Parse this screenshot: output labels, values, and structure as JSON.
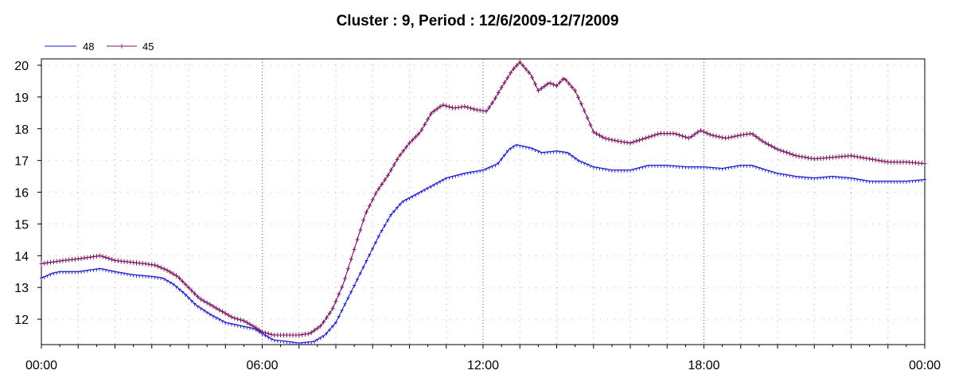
{
  "chart_data": {
    "type": "line",
    "title": "Cluster : 9, Period : 12/6/2009-12/7/2009",
    "xlabel": "",
    "ylabel": "",
    "x_unit": "hours",
    "xlim": [
      0,
      24
    ],
    "ylim": [
      11.2,
      20.2
    ],
    "x_ticks": [
      {
        "value": 0,
        "label": "00:00"
      },
      {
        "value": 6,
        "label": "06:00"
      },
      {
        "value": 12,
        "label": "12:00"
      },
      {
        "value": 18,
        "label": "18:00"
      },
      {
        "value": 24,
        "label": "00:00"
      }
    ],
    "y_ticks": [
      12,
      13,
      14,
      15,
      16,
      17,
      18,
      19,
      20
    ],
    "grid": true,
    "legend_position": "top-left",
    "series": [
      {
        "name": "48",
        "color": "#1c1cc8",
        "marker": "tick",
        "points": [
          [
            0.0,
            13.3
          ],
          [
            0.3,
            13.45
          ],
          [
            0.5,
            13.5
          ],
          [
            1.0,
            13.5
          ],
          [
            1.3,
            13.55
          ],
          [
            1.6,
            13.6
          ],
          [
            2.0,
            13.5
          ],
          [
            2.5,
            13.4
          ],
          [
            3.0,
            13.35
          ],
          [
            3.3,
            13.3
          ],
          [
            3.6,
            13.1
          ],
          [
            3.9,
            12.8
          ],
          [
            4.2,
            12.45
          ],
          [
            4.6,
            12.15
          ],
          [
            5.0,
            11.9
          ],
          [
            5.4,
            11.8
          ],
          [
            5.8,
            11.7
          ],
          [
            6.0,
            11.55
          ],
          [
            6.3,
            11.35
          ],
          [
            6.7,
            11.3
          ],
          [
            7.0,
            11.25
          ],
          [
            7.4,
            11.3
          ],
          [
            7.7,
            11.5
          ],
          [
            8.0,
            11.9
          ],
          [
            8.3,
            12.6
          ],
          [
            8.6,
            13.3
          ],
          [
            8.9,
            14.0
          ],
          [
            9.2,
            14.7
          ],
          [
            9.5,
            15.3
          ],
          [
            9.8,
            15.7
          ],
          [
            10.2,
            15.95
          ],
          [
            10.6,
            16.2
          ],
          [
            11.0,
            16.45
          ],
          [
            11.5,
            16.6
          ],
          [
            12.0,
            16.7
          ],
          [
            12.4,
            16.9
          ],
          [
            12.7,
            17.35
          ],
          [
            12.9,
            17.5
          ],
          [
            13.3,
            17.4
          ],
          [
            13.6,
            17.25
          ],
          [
            14.0,
            17.3
          ],
          [
            14.3,
            17.25
          ],
          [
            14.6,
            17.0
          ],
          [
            15.0,
            16.8
          ],
          [
            15.5,
            16.7
          ],
          [
            16.0,
            16.7
          ],
          [
            16.5,
            16.85
          ],
          [
            17.0,
            16.85
          ],
          [
            17.5,
            16.8
          ],
          [
            18.0,
            16.8
          ],
          [
            18.5,
            16.75
          ],
          [
            19.0,
            16.85
          ],
          [
            19.3,
            16.85
          ],
          [
            19.7,
            16.7
          ],
          [
            20.0,
            16.6
          ],
          [
            20.5,
            16.5
          ],
          [
            21.0,
            16.45
          ],
          [
            21.5,
            16.5
          ],
          [
            22.0,
            16.45
          ],
          [
            22.5,
            16.35
          ],
          [
            23.0,
            16.35
          ],
          [
            23.5,
            16.35
          ],
          [
            24.0,
            16.4
          ]
        ]
      },
      {
        "name": "45",
        "color": "#7a1460",
        "marker": "plus",
        "points": [
          [
            0.0,
            13.75
          ],
          [
            0.3,
            13.8
          ],
          [
            0.6,
            13.85
          ],
          [
            1.0,
            13.9
          ],
          [
            1.3,
            13.95
          ],
          [
            1.6,
            14.0
          ],
          [
            2.0,
            13.85
          ],
          [
            2.4,
            13.8
          ],
          [
            2.8,
            13.75
          ],
          [
            3.1,
            13.7
          ],
          [
            3.4,
            13.55
          ],
          [
            3.7,
            13.35
          ],
          [
            4.0,
            13.0
          ],
          [
            4.3,
            12.65
          ],
          [
            4.6,
            12.45
          ],
          [
            4.9,
            12.25
          ],
          [
            5.2,
            12.05
          ],
          [
            5.5,
            11.95
          ],
          [
            5.8,
            11.75
          ],
          [
            6.0,
            11.6
          ],
          [
            6.3,
            11.5
          ],
          [
            6.6,
            11.5
          ],
          [
            7.0,
            11.5
          ],
          [
            7.3,
            11.55
          ],
          [
            7.6,
            11.8
          ],
          [
            7.9,
            12.3
          ],
          [
            8.2,
            13.1
          ],
          [
            8.5,
            14.2
          ],
          [
            8.8,
            15.3
          ],
          [
            9.1,
            16.0
          ],
          [
            9.4,
            16.5
          ],
          [
            9.7,
            17.1
          ],
          [
            10.0,
            17.55
          ],
          [
            10.3,
            17.9
          ],
          [
            10.6,
            18.5
          ],
          [
            10.9,
            18.75
          ],
          [
            11.2,
            18.65
          ],
          [
            11.5,
            18.7
          ],
          [
            11.8,
            18.6
          ],
          [
            12.1,
            18.55
          ],
          [
            12.3,
            18.9
          ],
          [
            12.5,
            19.3
          ],
          [
            12.8,
            19.85
          ],
          [
            13.0,
            20.1
          ],
          [
            13.3,
            19.7
          ],
          [
            13.5,
            19.2
          ],
          [
            13.8,
            19.45
          ],
          [
            14.0,
            19.35
          ],
          [
            14.2,
            19.6
          ],
          [
            14.5,
            19.2
          ],
          [
            14.7,
            18.7
          ],
          [
            15.0,
            17.9
          ],
          [
            15.3,
            17.7
          ],
          [
            15.7,
            17.6
          ],
          [
            16.0,
            17.55
          ],
          [
            16.4,
            17.7
          ],
          [
            16.8,
            17.85
          ],
          [
            17.2,
            17.85
          ],
          [
            17.6,
            17.7
          ],
          [
            17.9,
            17.95
          ],
          [
            18.2,
            17.8
          ],
          [
            18.6,
            17.7
          ],
          [
            19.0,
            17.8
          ],
          [
            19.3,
            17.85
          ],
          [
            19.6,
            17.6
          ],
          [
            20.0,
            17.35
          ],
          [
            20.5,
            17.15
          ],
          [
            21.0,
            17.05
          ],
          [
            21.5,
            17.1
          ],
          [
            22.0,
            17.15
          ],
          [
            22.5,
            17.05
          ],
          [
            23.0,
            16.95
          ],
          [
            23.5,
            16.95
          ],
          [
            24.0,
            16.9
          ]
        ]
      }
    ]
  }
}
